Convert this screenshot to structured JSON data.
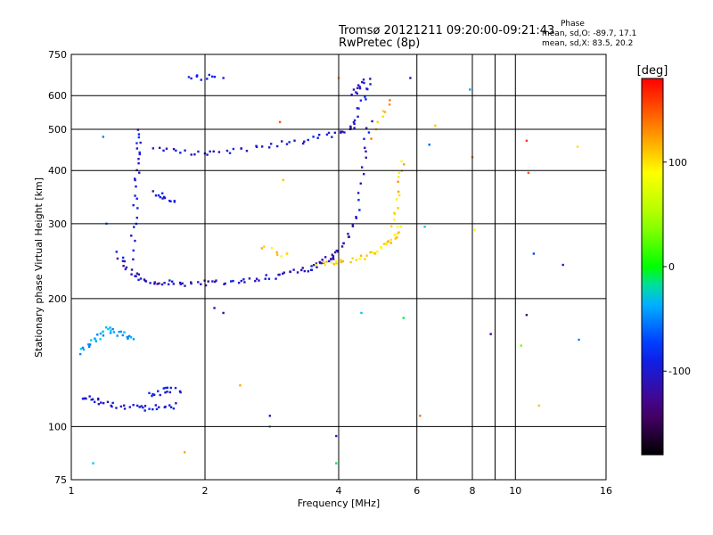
{
  "chart_data": {
    "type": "scatter",
    "title": "Tromsø 20121211 09:20:00-09:21:43",
    "subtitle": "RwPretec (8p)",
    "xlabel": "Frequency [MHz]",
    "ylabel": "Stationary phase Virtual Height [km]",
    "x_scale": "log",
    "y_scale": "log",
    "xlim": [
      1,
      16
    ],
    "ylim": [
      75,
      750
    ],
    "x_major_ticks": [
      1,
      2,
      4,
      6,
      8,
      10,
      16
    ],
    "x_minor_ticks": [
      9
    ],
    "y_ticks": [
      75,
      100,
      200,
      300,
      400,
      500,
      600,
      750
    ],
    "grid": true,
    "colorbar": {
      "label": "[deg]",
      "ticks": [
        100,
        0,
        -100
      ],
      "range": [
        -180,
        180
      ],
      "colormap": "rainbow"
    },
    "phase_stats": {
      "header": "Phase",
      "line_o": "mean, sd,O: -89.7, 17.1",
      "line_x": "mean, sd,X: 83.5, 20.2"
    },
    "traces": [
      {
        "f": [
          1.28,
          1.36,
          1.48,
          1.65,
          1.9,
          2.2,
          2.6,
          3.0,
          3.4,
          3.7,
          3.9
        ],
        "h": [
          255,
          228,
          220,
          218,
          217,
          218,
          222,
          228,
          235,
          243,
          252
        ],
        "phase": -105,
        "n": 90
      },
      {
        "f": [
          3.9,
          4.05,
          4.2,
          4.35
        ],
        "h": [
          252,
          262,
          280,
          305
        ],
        "phase": -110,
        "n": 14
      },
      {
        "f": [
          1.55,
          1.8,
          2.1,
          2.5,
          3.0,
          3.5,
          4.0,
          4.35
        ],
        "h": [
          448,
          440,
          442,
          450,
          462,
          475,
          490,
          510
        ],
        "phase": -100,
        "n": 50
      },
      {
        "f": [
          4.35,
          4.5,
          4.65
        ],
        "h": [
          510,
          570,
          640
        ],
        "phase": -95,
        "n": 12
      },
      {
        "f": [
          4.4,
          4.5,
          4.6,
          4.7
        ],
        "h": [
          310,
          380,
          450,
          520
        ],
        "phase": -100,
        "n": 14
      },
      {
        "f": [
          3.6,
          4.0,
          4.5,
          5.0,
          5.3,
          5.5
        ],
        "h": [
          240,
          245,
          250,
          262,
          275,
          295
        ],
        "phase": 100,
        "n": 40
      },
      {
        "f": [
          5.3,
          5.45,
          5.5,
          5.6
        ],
        "h": [
          300,
          330,
          380,
          420
        ],
        "phase": 110,
        "n": 14
      },
      {
        "f": [
          2.7,
          2.9,
          3.1
        ],
        "h": [
          265,
          257,
          252
        ],
        "phase": 105,
        "n": 8
      },
      {
        "f": [
          4.8,
          5.0,
          5.2
        ],
        "h": [
          480,
          540,
          580
        ],
        "phase": 120,
        "n": 8
      },
      {
        "f": [
          1.38,
          1.4,
          1.42
        ],
        "h": [
          250,
          380,
          500
        ],
        "phase": -95,
        "n": 26
      },
      {
        "f": [
          1.05,
          1.2,
          1.38
        ],
        "h": [
          150,
          170,
          160
        ],
        "phase": -40,
        "n": 35
      },
      {
        "f": [
          1.05,
          1.2,
          1.45,
          1.7
        ],
        "h": [
          118,
          113,
          110,
          112
        ],
        "phase": -100,
        "n": 40
      },
      {
        "f": [
          1.5,
          1.62,
          1.75
        ],
        "h": [
          118,
          122,
          122
        ],
        "phase": -95,
        "n": 16
      },
      {
        "f": [
          1.55,
          1.62,
          1.7
        ],
        "h": [
          355,
          343,
          338
        ],
        "phase": -100,
        "n": 12
      },
      {
        "f": [
          1.85,
          1.95,
          2.1
        ],
        "h": [
          660,
          663,
          660
        ],
        "phase": -90,
        "n": 10
      },
      {
        "f": [
          4.3,
          4.45,
          4.65
        ],
        "h": [
          600,
          625,
          650
        ],
        "phase": -110,
        "n": 12
      }
    ],
    "scattered_points": [
      {
        "f": 2.2,
        "h": 660,
        "phase": -90
      },
      {
        "f": 1.18,
        "h": 480,
        "phase": -50
      },
      {
        "f": 2.95,
        "h": 520,
        "phase": 150
      },
      {
        "f": 3.0,
        "h": 380,
        "phase": 110
      },
      {
        "f": 4.0,
        "h": 660,
        "phase": 120
      },
      {
        "f": 5.8,
        "h": 660,
        "phase": -120
      },
      {
        "f": 6.6,
        "h": 510,
        "phase": 110
      },
      {
        "f": 6.4,
        "h": 460,
        "phase": -60
      },
      {
        "f": 7.9,
        "h": 620,
        "phase": -40
      },
      {
        "f": 8.0,
        "h": 430,
        "phase": 130
      },
      {
        "f": 10.6,
        "h": 470,
        "phase": 160
      },
      {
        "f": 10.7,
        "h": 395,
        "phase": 150
      },
      {
        "f": 13.8,
        "h": 455,
        "phase": 100
      },
      {
        "f": 6.25,
        "h": 295,
        "phase": -30
      },
      {
        "f": 8.1,
        "h": 290,
        "phase": 90
      },
      {
        "f": 11.0,
        "h": 255,
        "phase": -70
      },
      {
        "f": 12.8,
        "h": 240,
        "phase": -100
      },
      {
        "f": 4.5,
        "h": 185,
        "phase": -30
      },
      {
        "f": 5.6,
        "h": 180,
        "phase": -10
      },
      {
        "f": 8.8,
        "h": 165,
        "phase": -130
      },
      {
        "f": 10.6,
        "h": 183,
        "phase": -140
      },
      {
        "f": 10.3,
        "h": 155,
        "phase": 30
      },
      {
        "f": 13.9,
        "h": 160,
        "phase": -50
      },
      {
        "f": 11.3,
        "h": 112,
        "phase": 110
      },
      {
        "f": 6.1,
        "h": 106,
        "phase": 140
      },
      {
        "f": 2.8,
        "h": 106,
        "phase": -110
      },
      {
        "f": 2.8,
        "h": 100,
        "phase": -10
      },
      {
        "f": 3.95,
        "h": 95,
        "phase": -100
      },
      {
        "f": 3.95,
        "h": 82,
        "phase": -10
      },
      {
        "f": 1.12,
        "h": 82,
        "phase": -30
      },
      {
        "f": 1.8,
        "h": 87,
        "phase": 120
      },
      {
        "f": 2.1,
        "h": 190,
        "phase": -110
      },
      {
        "f": 2.2,
        "h": 185,
        "phase": -120
      },
      {
        "f": 2.4,
        "h": 125,
        "phase": 120
      },
      {
        "f": 1.2,
        "h": 300,
        "phase": -60
      }
    ]
  }
}
